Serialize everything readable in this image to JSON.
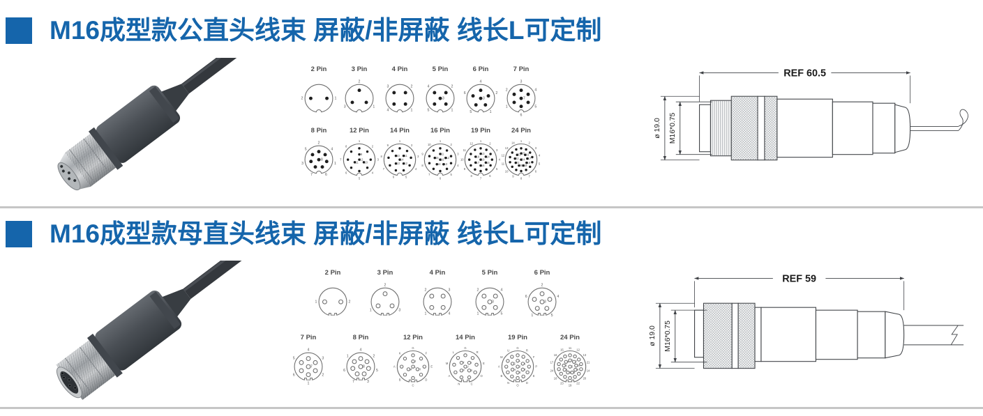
{
  "page": {
    "background": "#ffffff",
    "accent_color": "#1565ab",
    "divider_color": "#c6c6c6",
    "diagram_line_color": "#6e6e6e",
    "diagram_text_color": "#4a4a4a",
    "drawing_line_color": "#3f4246"
  },
  "sections": [
    {
      "id": "male",
      "title": "M16成型款公直头线束 屏蔽/非屏蔽 线长L可定制",
      "connector_gender": "male",
      "photo_description": "m16-male-straight-overmolded-connector-with-cable",
      "pin_rows": [
        [
          {
            "label": "2 Pin",
            "pins": 2,
            "pin_labels": [
              "2",
              "1"
            ]
          },
          {
            "label": "3 Pin",
            "pins": 3,
            "pin_labels": [
              "2",
              "1",
              "3"
            ]
          },
          {
            "label": "4 Pin",
            "pins": 4,
            "pin_labels": [
              "3",
              "2",
              "1",
              "4"
            ]
          },
          {
            "label": "5 Pin",
            "pins": 5,
            "pin_labels": [
              "4",
              "2",
              "1",
              "5",
              "3"
            ]
          },
          {
            "label": "6 Pin",
            "pins": 6,
            "pin_labels": [
              "4",
              "2",
              "1",
              "5",
              "6",
              "3"
            ]
          },
          {
            "label": "7 Pin",
            "pins": 7,
            "pin_labels": [
              "3",
              "4",
              "5",
              "6",
              "1",
              "2",
              "7"
            ]
          }
        ],
        [
          {
            "label": "8 Pin",
            "pins": 8,
            "pin_labels": [
              "2",
              "4",
              "1",
              "6",
              "7",
              "3",
              "5",
              "8"
            ]
          },
          {
            "label": "12 Pin",
            "pins": 12,
            "pin_labels": [
              "1",
              "2",
              "3",
              "4",
              "5",
              "6",
              "7",
              "8",
              "9",
              "10",
              "11",
              "12"
            ]
          },
          {
            "label": "14 Pin",
            "pins": 14,
            "pin_labels": [
              "1",
              "2",
              "3",
              "4",
              "5",
              "6",
              "7",
              "8",
              "9",
              "10",
              "11",
              "12",
              "13",
              "14"
            ]
          },
          {
            "label": "16 Pin",
            "pins": 16,
            "pin_labels": [
              "1",
              "2",
              "3",
              "4",
              "5",
              "6",
              "7",
              "8",
              "9",
              "10",
              "11",
              "12",
              "13",
              "14",
              "15",
              "16"
            ]
          },
          {
            "label": "19 Pin",
            "pins": 19,
            "pin_labels": [
              "1",
              "2",
              "3",
              "4",
              "5",
              "6",
              "7",
              "8",
              "9",
              "10",
              "11",
              "12",
              "13",
              "14",
              "15",
              "16",
              "17",
              "18",
              "19"
            ]
          },
          {
            "label": "24 Pin",
            "pins": 24,
            "pin_labels": [
              "1",
              "2",
              "3",
              "4",
              "5",
              "6",
              "7",
              "8",
              "9",
              "10",
              "11",
              "12",
              "13",
              "14",
              "15",
              "16",
              "17",
              "18",
              "19",
              "20",
              "21",
              "22",
              "23",
              "24"
            ]
          }
        ]
      ],
      "drawing": {
        "ref_label": "REF 60.5",
        "diameter_label": "ø 19.0",
        "thread_label": "M16*0.75"
      }
    },
    {
      "id": "female",
      "title": "M16成型款母直头线束 屏蔽/非屏蔽 线长L可定制",
      "connector_gender": "female",
      "photo_description": "m16-female-straight-overmolded-connector-with-cable",
      "pin_rows": [
        [
          {
            "label": "2 Pin",
            "pins": 2,
            "pin_labels": [
              "1",
              "2"
            ]
          },
          {
            "label": "3 Pin",
            "pins": 3,
            "pin_labels": [
              "2",
              "3",
              "1"
            ]
          },
          {
            "label": "4 Pin",
            "pins": 4,
            "pin_labels": [
              "2",
              "3",
              "4",
              "1"
            ]
          },
          {
            "label": "5 Pin",
            "pins": 5,
            "pin_labels": [
              "2",
              "4",
              "5",
              "1",
              "3"
            ]
          },
          {
            "label": "6 Pin",
            "pins": 6,
            "pin_labels": [
              "2",
              "4",
              "5",
              "1",
              "6",
              "3"
            ]
          }
        ],
        [
          {
            "label": "7 Pin",
            "pins": 7,
            "pin_labels": [
              "4",
              "3",
              "2",
              "1",
              "6",
              "5",
              "7"
            ]
          },
          {
            "label": "8 Pin",
            "pins": 8,
            "pin_labels": [
              "4",
              "2",
              "5",
              "3",
              "7",
              "6",
              "1",
              "8"
            ]
          },
          {
            "label": "12 Pin",
            "pins": 12,
            "pin_labels": [
              "G",
              "F",
              "E",
              "D",
              "C",
              "B",
              "A",
              "K",
              "J",
              "H",
              "M",
              "L"
            ]
          },
          {
            "label": "14 Pin",
            "pins": 14,
            "pin_labels": [
              "G",
              "R",
              "E",
              "O",
              "C",
              "N",
              "A",
              "M",
              "L",
              "T",
              "I",
              "S",
              "P",
              "U"
            ]
          },
          {
            "label": "19 Pin",
            "pins": 19,
            "pin_labels": [
              "G",
              "R",
              "F",
              "P",
              "E",
              "D",
              "O",
              "N",
              "B",
              "A",
              "M",
              "U",
              "L",
              "K",
              "T",
              "S",
              "H",
              "C",
              "J"
            ]
          },
          {
            "label": "24 Pin",
            "pins": 24,
            "pin_labels": [
              "11",
              "12",
              "13",
              "21",
              "14",
              "20",
              "22",
              "19",
              "23",
              "18",
              "24",
              "17",
              "16",
              "15",
              "6",
              "7",
              "10",
              "9",
              "8",
              "1",
              "2",
              "3",
              "4",
              "5"
            ]
          }
        ]
      ],
      "drawing": {
        "ref_label": "REF 59",
        "diameter_label": "ø 19.0",
        "thread_label": "M16*0.75"
      }
    }
  ]
}
